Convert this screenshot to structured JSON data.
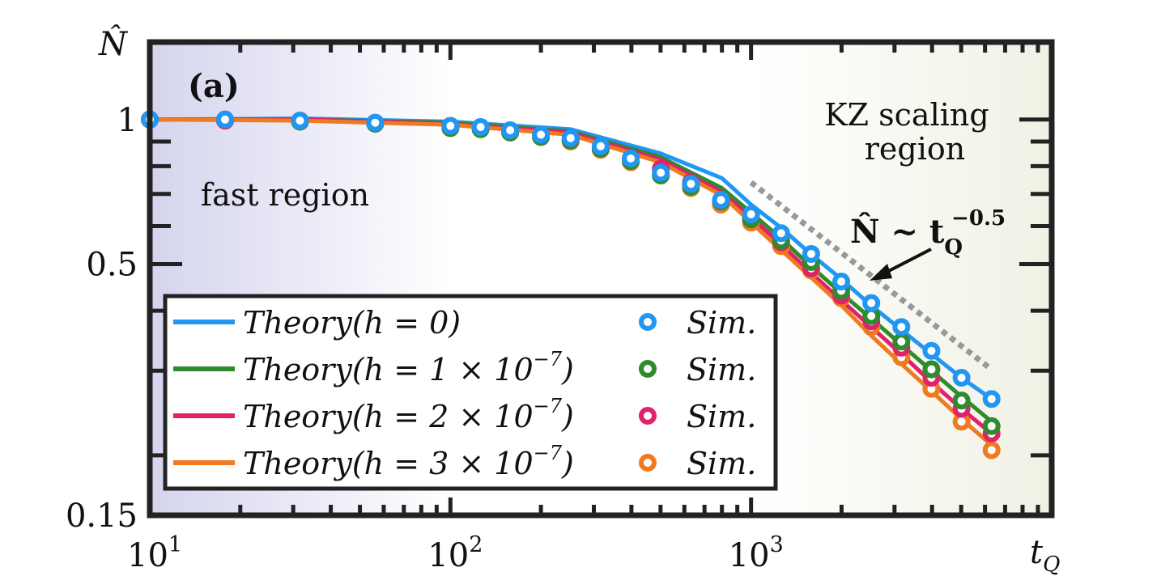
{
  "chart_data": {
    "type": "line",
    "panel_label": "(a)",
    "xscale": "log",
    "yscale": "log",
    "xlim": [
      10,
      10000
    ],
    "ylim": [
      0.15,
      1.45
    ],
    "xlabel": "t",
    "xlabel_sub": "Q",
    "ylabel": "N̂",
    "x_ticks": [
      {
        "value": 10,
        "base": "10",
        "exp": "1"
      },
      {
        "value": 100,
        "base": "10",
        "exp": "2"
      },
      {
        "value": 1000,
        "base": "10",
        "exp": "3"
      }
    ],
    "y_ticks": [
      {
        "value": 1,
        "label": "1"
      },
      {
        "value": 0.5,
        "label": "0.5"
      },
      {
        "value": 0.15,
        "label": "0.15"
      }
    ],
    "regions": {
      "fast": {
        "label": "fast region",
        "color": "#d8d8f0"
      },
      "kz": {
        "label_line1": "KZ scaling",
        "label_line2": "region",
        "color": "#f4f4ea"
      }
    },
    "scaling": {
      "label_main": "N̂ ~ t",
      "label_sub": "Q",
      "label_exp": "−0.5",
      "x": [
        1000,
        6300
      ],
      "y": [
        0.74,
        0.302
      ]
    },
    "series": [
      {
        "name": "h=0",
        "theory_label": "Theory(h = 0)",
        "sim_label": "Sim.",
        "color": "#2196f3",
        "theory_x": [
          10,
          32,
          100,
          250,
          500,
          800,
          1000,
          1260,
          1580,
          2000,
          2510,
          3160,
          3980,
          5010,
          6310
        ],
        "theory_y": [
          1.0,
          1.005,
          0.99,
          0.955,
          0.85,
          0.755,
          0.665,
          0.595,
          0.525,
          0.465,
          0.41,
          0.365,
          0.325,
          0.29,
          0.262
        ],
        "sim_x": [
          10,
          17.8,
          31.6,
          56.2,
          100,
          126,
          158,
          200,
          251,
          316,
          398,
          501,
          631,
          794,
          1000,
          1259,
          1585,
          1995,
          2512,
          3162,
          3981,
          5012,
          6310
        ],
        "sim_y": [
          1.0,
          1.0,
          0.995,
          0.985,
          0.97,
          0.965,
          0.95,
          0.93,
          0.915,
          0.88,
          0.83,
          0.775,
          0.735,
          0.68,
          0.635,
          0.58,
          0.525,
          0.46,
          0.415,
          0.37,
          0.33,
          0.29,
          0.262
        ]
      },
      {
        "name": "h=1e-7",
        "theory_label": "Theory(h = 1 × 10",
        "theory_exp": "−7",
        "sim_label": "Sim.",
        "color": "#2e8b2e",
        "theory_x": [
          10,
          32,
          100,
          250,
          500,
          800,
          1000,
          1260,
          1580,
          2000,
          2510,
          3160,
          3980,
          5010,
          6310
        ],
        "theory_y": [
          1.0,
          1.0,
          0.985,
          0.945,
          0.835,
          0.72,
          0.64,
          0.565,
          0.495,
          0.435,
          0.385,
          0.34,
          0.3,
          0.265,
          0.235
        ],
        "sim_x": [
          10,
          17.8,
          31.6,
          56.2,
          100,
          126,
          158,
          200,
          251,
          316,
          398,
          501,
          631,
          794,
          1000,
          1259,
          1585,
          1995,
          2512,
          3162,
          3981,
          5012,
          6310
        ],
        "sim_y": [
          1.0,
          1.0,
          0.99,
          0.98,
          0.96,
          0.955,
          0.94,
          0.92,
          0.905,
          0.87,
          0.82,
          0.765,
          0.725,
          0.675,
          0.62,
          0.56,
          0.505,
          0.44,
          0.39,
          0.345,
          0.302,
          0.26,
          0.23
        ]
      },
      {
        "name": "h=2e-7",
        "theory_label": "Theory(h = 2 × 10",
        "theory_exp": "−7",
        "sim_label": "Sim.",
        "color": "#e0226a",
        "theory_x": [
          10,
          32,
          100,
          250,
          500,
          800,
          1000,
          1260,
          1580,
          2000,
          2510,
          3160,
          3980,
          5010,
          6310
        ],
        "theory_y": [
          1.0,
          1.0,
          0.98,
          0.94,
          0.825,
          0.705,
          0.625,
          0.55,
          0.48,
          0.42,
          0.37,
          0.325,
          0.284,
          0.25,
          0.222
        ],
        "sim_x": [
          10,
          17.8,
          31.6,
          56.2,
          100,
          126,
          158,
          200,
          251,
          316,
          398,
          501,
          631,
          794,
          1000,
          1259,
          1585,
          1995,
          2512,
          3162,
          3981,
          5012,
          6310
        ],
        "sim_y": [
          1.0,
          0.995,
          0.995,
          0.985,
          0.97,
          0.96,
          0.945,
          0.925,
          0.905,
          0.87,
          0.83,
          0.79,
          0.74,
          0.675,
          0.62,
          0.555,
          0.49,
          0.43,
          0.38,
          0.335,
          0.29,
          0.25,
          0.222
        ]
      },
      {
        "name": "h=3e-7",
        "theory_label": "Theory(h = 3 × 10",
        "theory_exp": "−7",
        "sim_label": "Sim.",
        "color": "#f07a20",
        "theory_x": [
          10,
          32,
          100,
          250,
          500,
          800,
          1000,
          1260,
          1580,
          2000,
          2510,
          3160,
          3980,
          5010,
          6310
        ],
        "theory_y": [
          1.0,
          0.995,
          0.975,
          0.93,
          0.815,
          0.695,
          0.61,
          0.535,
          0.47,
          0.41,
          0.355,
          0.31,
          0.272,
          0.238,
          0.21
        ],
        "sim_x": [
          10,
          17.8,
          31.6,
          56.2,
          100,
          126,
          158,
          200,
          251,
          316,
          398,
          501,
          631,
          794,
          1000,
          1259,
          1585,
          1995,
          2512,
          3162,
          3981,
          5012,
          6310
        ],
        "sim_y": [
          1.0,
          0.995,
          0.99,
          0.98,
          0.96,
          0.955,
          0.94,
          0.92,
          0.9,
          0.865,
          0.815,
          0.765,
          0.72,
          0.665,
          0.61,
          0.545,
          0.485,
          0.425,
          0.37,
          0.32,
          0.275,
          0.235,
          0.205
        ]
      }
    ]
  }
}
